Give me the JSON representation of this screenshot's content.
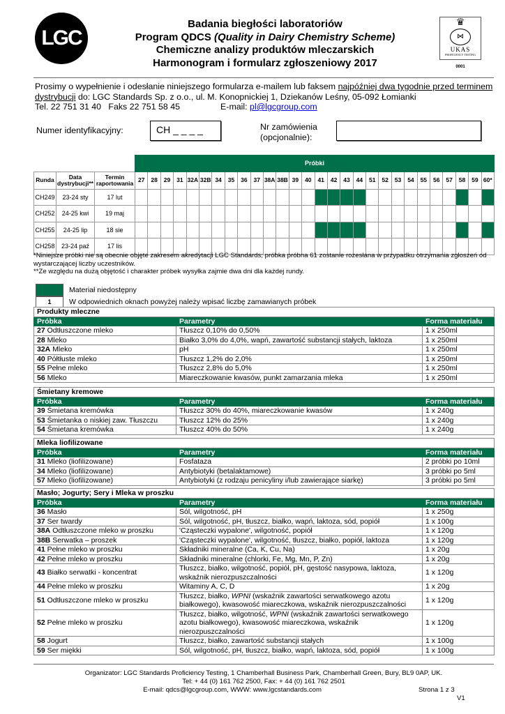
{
  "header": {
    "logo_text": "LGC",
    "title_lines": [
      "Badania biegłości laboratoriów",
      "Program QDCS ",
      "(Quality in Dairy Chemistry Scheme)",
      "Chemiczne analizy produktów mleczarskich",
      "Harmonogram i formularz zgłoszeniowy 2017"
    ],
    "ukas": {
      "text": "UKAS",
      "sub": "PROFICIENCY TESTING",
      "number": "0001"
    }
  },
  "intro": {
    "p1": "Prosimy o wypełnienie i odesłanie niniejszego formularza e-mailem lub faksem ",
    "p1_underline": "najpóźniej dwa tygodnie przed terminem dystrybucji",
    "p2": " do: LGC Standards Sp. z o.o., ul. M. Konopnickiej 1,  Dziekanów Leśny, 05-092 Łomianki",
    "phone": "Tel. 22 751 31 40   Faks 22 751 58 45",
    "email_label": "E-mail: ",
    "email": "pl@lgcgroup.com"
  },
  "form": {
    "id_label": "Numer identyfikacyjny:",
    "id_value": "CH _ _ _ _",
    "order_label_1": "Nr zamówienia",
    "order_label_2": "(opcjonalnie):",
    "order_value": ""
  },
  "schedule": {
    "group_header": "Próbki",
    "col_headers": [
      "Runda",
      "Data dystrybucji**",
      "Termin raportowania"
    ],
    "samples": [
      "27",
      "28",
      "29",
      "31",
      "32A",
      "32B",
      "34",
      "35",
      "36",
      "37",
      "38A",
      "38B",
      "39",
      "40",
      "41",
      "42",
      "43",
      "44",
      "51",
      "52",
      "53",
      "54",
      "55",
      "56",
      "57",
      "58",
      "59",
      "60*"
    ],
    "rounds": [
      {
        "round": "CH249",
        "dist": "23-24 sty",
        "report": "17 lut",
        "unavailable": [
          "41",
          "42",
          "43",
          "44",
          "58",
          "60*"
        ]
      },
      {
        "round": "CH252",
        "dist": "24-25 kwi",
        "report": "19 maj",
        "unavailable": []
      },
      {
        "round": "CH255",
        "dist": "24-25 lip",
        "report": "18 sie",
        "unavailable": [
          "41",
          "42",
          "43",
          "44",
          "58",
          "60*"
        ]
      },
      {
        "round": "CH258",
        "dist": "23-24 paź",
        "report": "17 lis",
        "unavailable": []
      }
    ],
    "colors": {
      "unavailable": "#00704a"
    }
  },
  "notes": [
    "*Niniejsze próbki nie są obecnie objęte zakresem akredytacji LGC Standards; próbka próbna 61 zostanie rozesłana w przypadku otrzymania zgłoszeń od wystarczającej liczby uczestników.",
    "**Ze względu na dużą objętość i charakter próbek wysyłka zajmie dwa dni dla każdej rundy."
  ],
  "legend": {
    "unavailable": "Materiał niedostępny",
    "sample_value": "1",
    "instruction": "W odpowiednich oknach powyżej należy wpisać liczbę zamawianych próbek"
  },
  "columns": {
    "sample": "Próbka",
    "params": "Parametry",
    "form": "Forma materiału"
  },
  "tables": [
    {
      "title": "Produkty mleczne",
      "rows": [
        {
          "num": "27",
          "name": "Odtłuszczone mleko",
          "params": "Tłuszcz 0,10% do 0,50%",
          "form": "1 x 250ml"
        },
        {
          "num": "28",
          "name": "Mleko",
          "params": "Białko 3,0% do 4,0%, wapń, zawartość substancji stałych, laktoza",
          "form": "1 x 250ml"
        },
        {
          "num": "32A",
          "name": "Mleko",
          "params": "pH",
          "form": "1 x 250ml"
        },
        {
          "num": "40",
          "name": "Półtłuste mleko",
          "params": "Tłuszcz 1,2% do 2,0%",
          "form": "1 x 250ml"
        },
        {
          "num": "55",
          "name": "Pełne mleko",
          "params": "Tłuszcz 2,8% do 5,0%",
          "form": "1 x 250ml"
        },
        {
          "num": "56",
          "name": "Mleko",
          "params": "Miareczkowanie kwasów, punkt zamarzania mleka",
          "form": "1 x 250ml"
        }
      ]
    },
    {
      "title": "Śmietany kremowe",
      "rows": [
        {
          "num": "39",
          "name": "Śmietana kremówka",
          "params": "Tłuszcz 30% do 40%, miareczkowanie kwasów",
          "form": "1 x 240g"
        },
        {
          "num": "53",
          "name": "Śmietanka o niskiej zaw. Tłuszczu",
          "params": "Tłuszcz 12% do 25%",
          "form": "1 x 240g"
        },
        {
          "num": "54",
          "name": "Śmietana kremówka",
          "params": "Tłuszcz 40% do 50%",
          "form": "1 x 240g"
        }
      ]
    },
    {
      "title": "Mleka liofilizowane",
      "rows": [
        {
          "num": "31",
          "name": "Mleko (liofilizowane)",
          "params": "Fosfataza",
          "form": "2 próbki po 10ml"
        },
        {
          "num": "34",
          "name": "Mleko (liofilizowane)",
          "params": "Antybiotyki (betalaktamowe)",
          "form": "3 próbki po 5ml"
        },
        {
          "num": "57",
          "name": "Mleko (liofilizowane)",
          "params": "Antybiotyki (z rodzaju penicyliny i/lub zawierające siarkę)",
          "form": "3 próbki po 5ml"
        }
      ]
    },
    {
      "title": "Masło; Jogurty; Sery i Mleka w proszku",
      "rows": [
        {
          "num": "36",
          "name": "Masło",
          "params": "Sól, wilgotność, pH",
          "form": "1 x 250g"
        },
        {
          "num": "37",
          "name": "Ser twardy",
          "params": "Sól, wilgotność, pH, tłuszcz, białko, wapń, laktoza, sód, popiół",
          "form": "1 x 100g"
        },
        {
          "num": "38A",
          "name": "Odtłuszczone mleko w proszku",
          "params": "'Cząsteczki wypalone', wilgotność, popiół",
          "form": "1 x 120g"
        },
        {
          "num": "38B",
          "name": "Serwatka – proszek",
          "params": "'Cząsteczki wypalone', wilgotność, tłuszcz, białko, popiół, laktoza",
          "form": "1 x 120g"
        },
        {
          "num": "41",
          "name": "Pełne mleko w proszku",
          "params": "Składniki mineralne (Ca, K, Cu, Na)",
          "form": "1 x 20g"
        },
        {
          "num": "42",
          "name": "Pełne mleko w proszku",
          "params": "Składniki mineralne (chlorki, Fe, Mg, Mn, P, Zn)",
          "form": "1 x 20g"
        },
        {
          "num": "43",
          "name": "Białko serwatki - koncentrat",
          "params": "Tłuszcz, białko, wilgotność, popiół, pH, gęstość nasypowa, laktoza, wskaźnik nierozpuszczalności",
          "form": "1 x 120g"
        },
        {
          "num": "44",
          "name": "Pełne mleko w proszku",
          "params": "Witaminy A, C, D",
          "form": "1 x 20g"
        },
        {
          "num": "51",
          "name": "Odtłuszczone mleko w proszku",
          "params": "Tłuszcz, białko, WPNI (wskaźnik zawartości serwatkowego azotu białkowego), kwasowość miareczkowa, wskaźnik nierozpuszczalności",
          "form": "1 x 120g"
        },
        {
          "num": "52",
          "name": "Pełne mleko w proszku",
          "params": "Tłuszcz, białko, wilgotność, WPNI (wskaźnik zawartości serwatkowego azotu białkowego), kwasowość miareczkowa, wskaźnik nierozpuszczalności",
          "form": "1 x 120g"
        },
        {
          "num": "58",
          "name": "Jogurt",
          "params": "Tłuszcz, białko, zawartość substancji stałych",
          "form": "1 x 100g"
        },
        {
          "num": "59",
          "name": "Ser miękki",
          "params": "Sól, wilgotność, pH, tłuszcz, białko, wapń, laktoza, sód, popiół",
          "form": "1 x 100g"
        }
      ]
    }
  ],
  "footer": {
    "line1": "Organizator: LGC Standards Proficiency Testing, 1 Chamberhall Business Park, Chamberhall Green, Bury, BL9 0AP, UK.",
    "line2": "Tel: + 44 (0) 161 762 2500, Fax: + 44 (0) 161 762 2501",
    "line3": "E-mail: qdcs@lgcgroup.com, WWW: www.lgcstandards.com",
    "page": "Strona 1 z 3",
    "version": "V1"
  }
}
